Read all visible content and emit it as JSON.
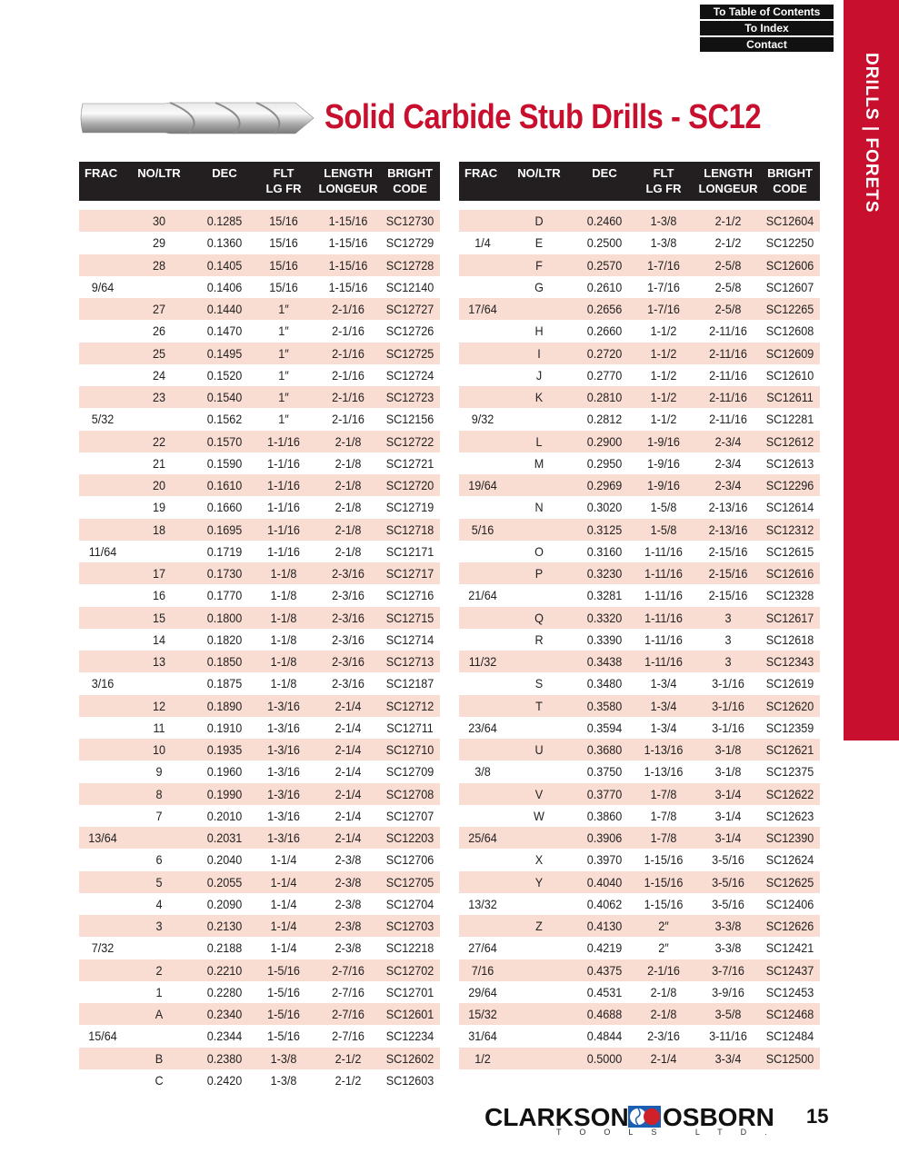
{
  "nav": {
    "links": [
      "To Table of Contents",
      "To Index",
      "Contact"
    ]
  },
  "sidebar": {
    "label": "DRILLS  |  FORETS",
    "color": "#c8102e"
  },
  "title": "Solid Carbide Stub Drills - SC12",
  "columns": [
    "FRAC",
    "NO/LTR",
    "DEC",
    "FLT\nLG FR",
    "LENGTH\nLONGEUR",
    "BRIGHT\nCODE"
  ],
  "columns_display": [
    {
      "l1": "FRAC",
      "l2": ""
    },
    {
      "l1": "NO/LTR",
      "l2": ""
    },
    {
      "l1": "DEC",
      "l2": ""
    },
    {
      "l1": "FLT",
      "l2": "LG FR"
    },
    {
      "l1": "LENGTH",
      "l2": "LONGEUR"
    },
    {
      "l1": "BRIGHT",
      "l2": "CODE"
    }
  ],
  "colors": {
    "row_shade": "#f9dcd2",
    "header_bg": "#231f20",
    "accent": "#c8102e"
  },
  "left_table": [
    [
      "",
      "30",
      "0.1285",
      "15/16",
      "1-15/16",
      "SC12730"
    ],
    [
      "",
      "29",
      "0.1360",
      "15/16",
      "1-15/16",
      "SC12729"
    ],
    [
      "",
      "28",
      "0.1405",
      "15/16",
      "1-15/16",
      "SC12728"
    ],
    [
      "9/64",
      "",
      "0.1406",
      "15/16",
      "1-15/16",
      "SC12140"
    ],
    [
      "",
      "27",
      "0.1440",
      "1″",
      "2-1/16",
      "SC12727"
    ],
    [
      "",
      "26",
      "0.1470",
      "1″",
      "2-1/16",
      "SC12726"
    ],
    [
      "",
      "25",
      "0.1495",
      "1″",
      "2-1/16",
      "SC12725"
    ],
    [
      "",
      "24",
      "0.1520",
      "1″",
      "2-1/16",
      "SC12724"
    ],
    [
      "",
      "23",
      "0.1540",
      "1″",
      "2-1/16",
      "SC12723"
    ],
    [
      "5/32",
      "",
      "0.1562",
      "1″",
      "2-1/16",
      "SC12156"
    ],
    [
      "",
      "22",
      "0.1570",
      "1-1/16",
      "2-1/8",
      "SC12722"
    ],
    [
      "",
      "21",
      "0.1590",
      "1-1/16",
      "2-1/8",
      "SC12721"
    ],
    [
      "",
      "20",
      "0.1610",
      "1-1/16",
      "2-1/8",
      "SC12720"
    ],
    [
      "",
      "19",
      "0.1660",
      "1-1/16",
      "2-1/8",
      "SC12719"
    ],
    [
      "",
      "18",
      "0.1695",
      "1-1/16",
      "2-1/8",
      "SC12718"
    ],
    [
      "11/64",
      "",
      "0.1719",
      "1-1/16",
      "2-1/8",
      "SC12171"
    ],
    [
      "",
      "17",
      "0.1730",
      "1-1/8",
      "2-3/16",
      "SC12717"
    ],
    [
      "",
      "16",
      "0.1770",
      "1-1/8",
      "2-3/16",
      "SC12716"
    ],
    [
      "",
      "15",
      "0.1800",
      "1-1/8",
      "2-3/16",
      "SC12715"
    ],
    [
      "",
      "14",
      "0.1820",
      "1-1/8",
      "2-3/16",
      "SC12714"
    ],
    [
      "",
      "13",
      "0.1850",
      "1-1/8",
      "2-3/16",
      "SC12713"
    ],
    [
      "3/16",
      "",
      "0.1875",
      "1-1/8",
      "2-3/16",
      "SC12187"
    ],
    [
      "",
      "12",
      "0.1890",
      "1-3/16",
      "2-1/4",
      "SC12712"
    ],
    [
      "",
      "11",
      "0.1910",
      "1-3/16",
      "2-1/4",
      "SC12711"
    ],
    [
      "",
      "10",
      "0.1935",
      "1-3/16",
      "2-1/4",
      "SC12710"
    ],
    [
      "",
      "9",
      "0.1960",
      "1-3/16",
      "2-1/4",
      "SC12709"
    ],
    [
      "",
      "8",
      "0.1990",
      "1-3/16",
      "2-1/4",
      "SC12708"
    ],
    [
      "",
      "7",
      "0.2010",
      "1-3/16",
      "2-1/4",
      "SC12707"
    ],
    [
      "13/64",
      "",
      "0.2031",
      "1-3/16",
      "2-1/4",
      "SC12203"
    ],
    [
      "",
      "6",
      "0.2040",
      "1-1/4",
      "2-3/8",
      "SC12706"
    ],
    [
      "",
      "5",
      "0.2055",
      "1-1/4",
      "2-3/8",
      "SC12705"
    ],
    [
      "",
      "4",
      "0.2090",
      "1-1/4",
      "2-3/8",
      "SC12704"
    ],
    [
      "",
      "3",
      "0.2130",
      "1-1/4",
      "2-3/8",
      "SC12703"
    ],
    [
      "7/32",
      "",
      "0.2188",
      "1-1/4",
      "2-3/8",
      "SC12218"
    ],
    [
      "",
      "2",
      "0.2210",
      "1-5/16",
      "2-7/16",
      "SC12702"
    ],
    [
      "",
      "1",
      "0.2280",
      "1-5/16",
      "2-7/16",
      "SC12701"
    ],
    [
      "",
      "A",
      "0.2340",
      "1-5/16",
      "2-7/16",
      "SC12601"
    ],
    [
      "15/64",
      "",
      "0.2344",
      "1-5/16",
      "2-7/16",
      "SC12234"
    ],
    [
      "",
      "B",
      "0.2380",
      "1-3/8",
      "2-1/2",
      "SC12602"
    ],
    [
      "",
      "C",
      "0.2420",
      "1-3/8",
      "2-1/2",
      "SC12603"
    ]
  ],
  "right_table": [
    [
      "",
      "D",
      "0.2460",
      "1-3/8",
      "2-1/2",
      "SC12604"
    ],
    [
      "1/4",
      "E",
      "0.2500",
      "1-3/8",
      "2-1/2",
      "SC12250"
    ],
    [
      "",
      "F",
      "0.2570",
      "1-7/16",
      "2-5/8",
      "SC12606"
    ],
    [
      "",
      "G",
      "0.2610",
      "1-7/16",
      "2-5/8",
      "SC12607"
    ],
    [
      "17/64",
      "",
      "0.2656",
      "1-7/16",
      "2-5/8",
      "SC12265"
    ],
    [
      "",
      "H",
      "0.2660",
      "1-1/2",
      "2-11/16",
      "SC12608"
    ],
    [
      "",
      "I",
      "0.2720",
      "1-1/2",
      "2-11/16",
      "SC12609"
    ],
    [
      "",
      "J",
      "0.2770",
      "1-1/2",
      "2-11/16",
      "SC12610"
    ],
    [
      "",
      "K",
      "0.2810",
      "1-1/2",
      "2-11/16",
      "SC12611"
    ],
    [
      "9/32",
      "",
      "0.2812",
      "1-1/2",
      "2-11/16",
      "SC12281"
    ],
    [
      "",
      "L",
      "0.2900",
      "1-9/16",
      "2-3/4",
      "SC12612"
    ],
    [
      "",
      "M",
      "0.2950",
      "1-9/16",
      "2-3/4",
      "SC12613"
    ],
    [
      "19/64",
      "",
      "0.2969",
      "1-9/16",
      "2-3/4",
      "SC12296"
    ],
    [
      "",
      "N",
      "0.3020",
      "1-5/8",
      "2-13/16",
      "SC12614"
    ],
    [
      "5/16",
      "",
      "0.3125",
      "1-5/8",
      "2-13/16",
      "SC12312"
    ],
    [
      "",
      "O",
      "0.3160",
      "1-11/16",
      "2-15/16",
      "SC12615"
    ],
    [
      "",
      "P",
      "0.3230",
      "1-11/16",
      "2-15/16",
      "SC12616"
    ],
    [
      "21/64",
      "",
      "0.3281",
      "1-11/16",
      "2-15/16",
      "SC12328"
    ],
    [
      "",
      "Q",
      "0.3320",
      "1-11/16",
      "3",
      "SC12617"
    ],
    [
      "",
      "R",
      "0.3390",
      "1-11/16",
      "3",
      "SC12618"
    ],
    [
      "11/32",
      "",
      "0.3438",
      "1-11/16",
      "3",
      "SC12343"
    ],
    [
      "",
      "S",
      "0.3480",
      "1-3/4",
      "3-1/16",
      "SC12619"
    ],
    [
      "",
      "T",
      "0.3580",
      "1-3/4",
      "3-1/16",
      "SC12620"
    ],
    [
      "23/64",
      "",
      "0.3594",
      "1-3/4",
      "3-1/16",
      "SC12359"
    ],
    [
      "",
      "U",
      "0.3680",
      "1-13/16",
      "3-1/8",
      "SC12621"
    ],
    [
      "3/8",
      "",
      "0.3750",
      "1-13/16",
      "3-1/8",
      "SC12375"
    ],
    [
      "",
      "V",
      "0.3770",
      "1-7/8",
      "3-1/4",
      "SC12622"
    ],
    [
      "",
      "W",
      "0.3860",
      "1-7/8",
      "3-1/4",
      "SC12623"
    ],
    [
      "25/64",
      "",
      "0.3906",
      "1-7/8",
      "3-1/4",
      "SC12390"
    ],
    [
      "",
      "X",
      "0.3970",
      "1-15/16",
      "3-5/16",
      "SC12624"
    ],
    [
      "",
      "Y",
      "0.4040",
      "1-15/16",
      "3-5/16",
      "SC12625"
    ],
    [
      "13/32",
      "",
      "0.4062",
      "1-15/16",
      "3-5/16",
      "SC12406"
    ],
    [
      "",
      "Z",
      "0.4130",
      "2″",
      "3-3/8",
      "SC12626"
    ],
    [
      "27/64",
      "",
      "0.4219",
      "2″",
      "3-3/8",
      "SC12421"
    ],
    [
      "7/16",
      "",
      "0.4375",
      "2-1/16",
      "3-7/16",
      "SC12437"
    ],
    [
      "29/64",
      "",
      "0.4531",
      "2-1/8",
      "3-9/16",
      "SC12453"
    ],
    [
      "15/32",
      "",
      "0.4688",
      "2-1/8",
      "3-5/8",
      "SC12468"
    ],
    [
      "31/64",
      "",
      "0.4844",
      "2-3/16",
      "3-11/16",
      "SC12484"
    ],
    [
      "1/2",
      "",
      "0.5000",
      "2-1/4",
      "3-3/4",
      "SC12500"
    ]
  ],
  "footer": {
    "brand_left": "CLARKSON",
    "brand_right": "OSBORN",
    "brand_sub": "TOOLS LTD.",
    "page_number": "15"
  }
}
